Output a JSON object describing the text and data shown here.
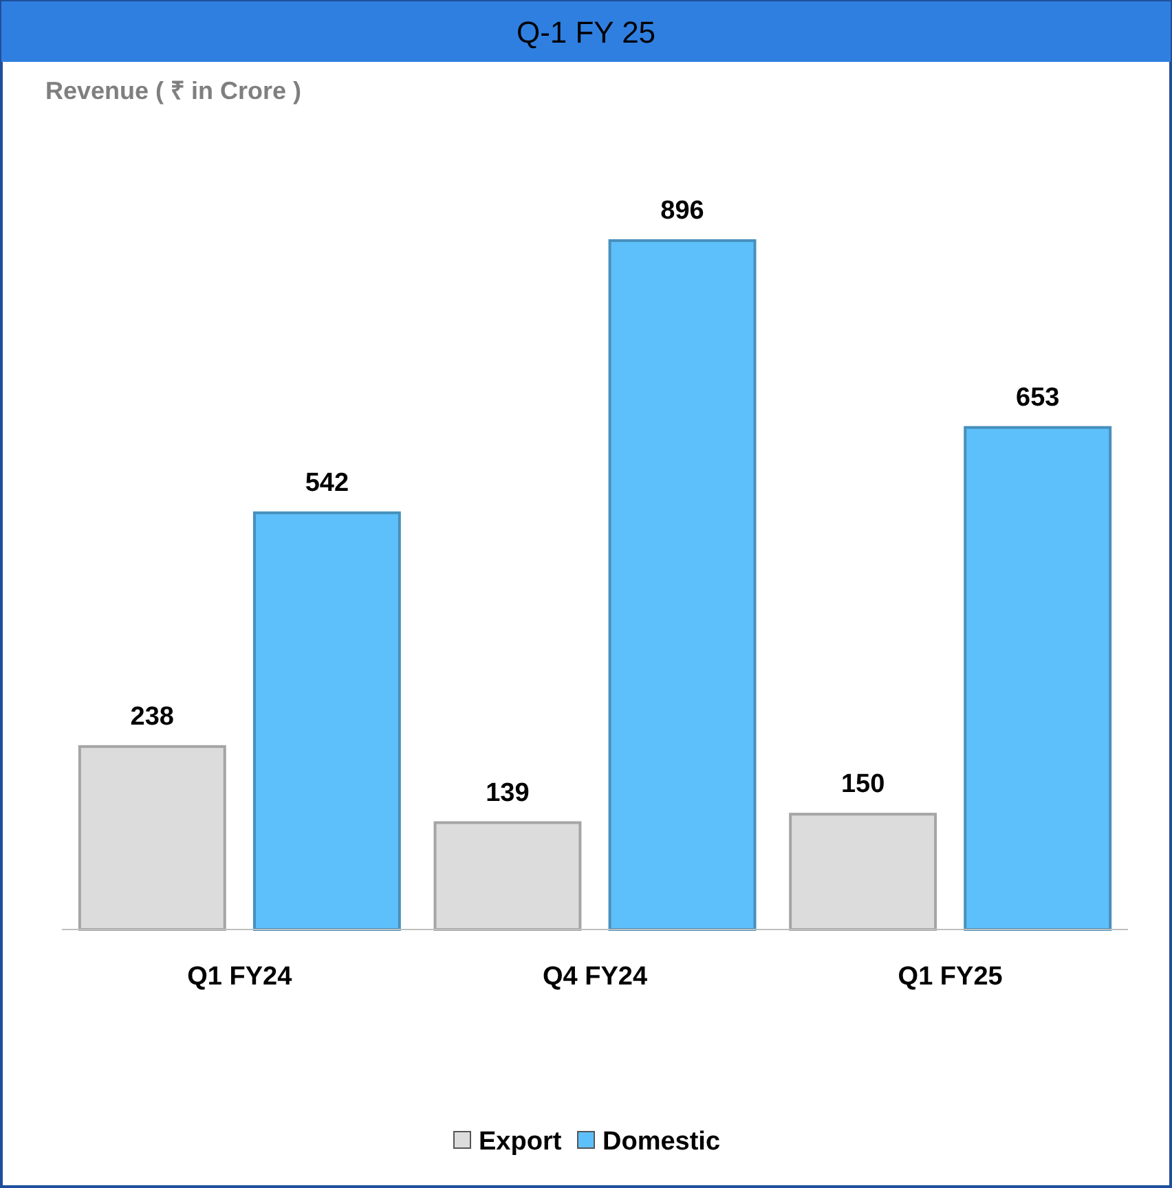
{
  "chart_data": {
    "type": "bar",
    "title": "Q-1 FY 25",
    "subtitle": "Revenue ( ₹ in Crore )",
    "categories": [
      "Q1 FY24",
      "Q4 FY24",
      "Q1 FY25"
    ],
    "series": [
      {
        "name": "Export",
        "color": "#dcdcdc",
        "values": [
          238,
          139,
          150
        ]
      },
      {
        "name": "Domestic",
        "color": "#5ec0fa",
        "values": [
          542,
          896,
          653
        ]
      }
    ],
    "data_labels": true,
    "legend": "bottom",
    "grid": false
  }
}
